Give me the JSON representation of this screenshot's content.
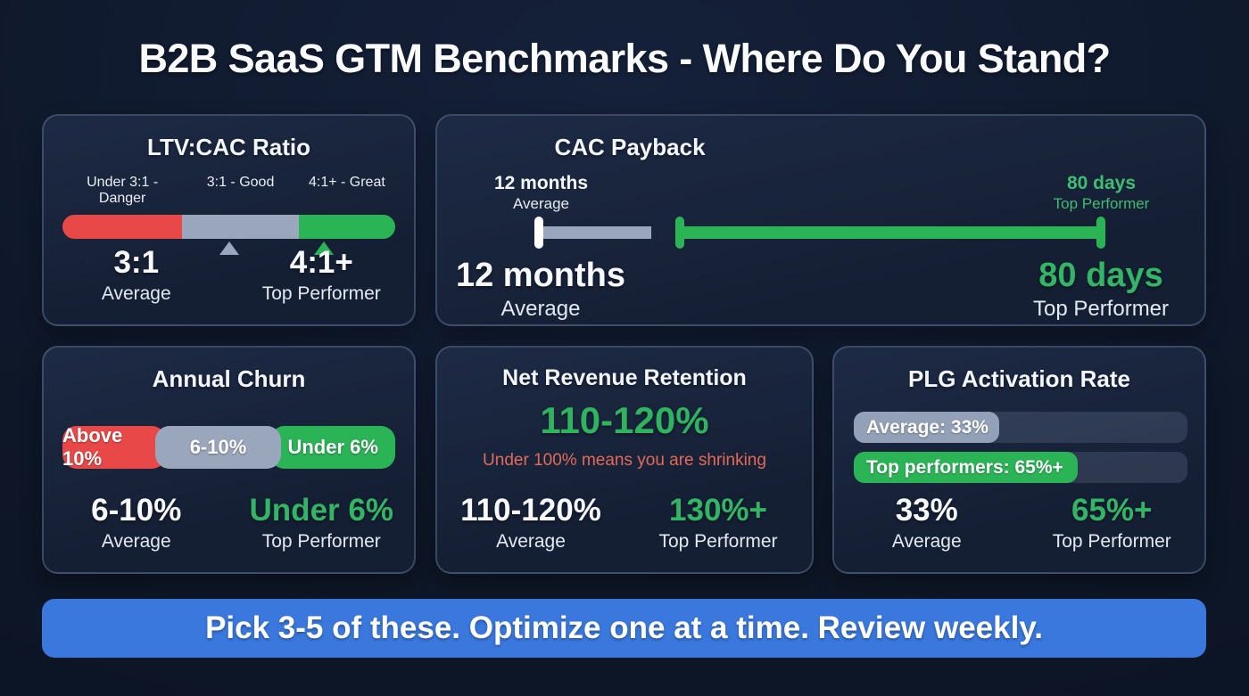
{
  "title": "B2B SaaS GTM Benchmarks - Where Do You Stand?",
  "banner": "Pick 3-5 of these. Optimize one at a time. Review weekly.",
  "colors": {
    "background": "#0e1728",
    "card_background": "#182440",
    "card_border": "#4a5c80",
    "danger_red": "#e94848",
    "neutral_slate": "#9aa6bb",
    "success_green": "#2bb456",
    "green_text": "#33b566",
    "warning_salmon": "#e26a5b",
    "banner_blue": "#3a78de",
    "text_white": "#f7f9fc"
  },
  "ltv_cac": {
    "title": "LTV:CAC Ratio",
    "zone_labels": [
      "Under 3:1 - Danger",
      "3:1 - Good",
      "4:1+ - Great"
    ],
    "avg_value": "3:1",
    "avg_label": "Average",
    "top_value": "4:1+",
    "top_label": "Top Performer"
  },
  "cac_payback": {
    "title": "CAC Payback",
    "marker_left_value": "12 months",
    "marker_left_label": "Average",
    "marker_right_value": "80 days",
    "marker_right_label": "Top Performer",
    "avg_value": "12 months",
    "avg_label": "Average",
    "top_value": "80 days",
    "top_label": "Top Performer"
  },
  "annual_churn": {
    "title": "Annual Churn",
    "segments": [
      "Above 10%",
      "6-10%",
      "Under 6%"
    ],
    "avg_value": "6-10%",
    "avg_label": "Average",
    "top_value": "Under 6%",
    "top_label": "Top Performer"
  },
  "nrr": {
    "title": "Net Revenue Retention",
    "highlight": "110-120%",
    "warning": "Under 100% means you are shrinking",
    "avg_value": "110-120%",
    "avg_label": "Average",
    "top_value": "130%+",
    "top_label": "Top Performer"
  },
  "plg": {
    "title": "PLG Activation Rate",
    "bar_average_label": "Average: 33%",
    "bar_top_label": "Top performers: 65%+",
    "avg_value": "33%",
    "avg_label": "Average",
    "top_value": "65%+",
    "top_label": "Top Performer"
  },
  "chart_data": [
    {
      "type": "bar",
      "title": "LTV:CAC Ratio",
      "categories": [
        "Under 3:1 - Danger",
        "3:1 - Good",
        "4:1+ - Great"
      ],
      "zone_colors": [
        "#e94848",
        "#9aa6bb",
        "#2bb456"
      ],
      "zone_widths_pct": [
        36,
        35,
        29
      ],
      "markers": [
        {
          "value": "3:1",
          "label": "Average",
          "position_pct": 50,
          "color": "#9aa6bb"
        },
        {
          "value": "4:1+",
          "label": "Top Performer",
          "position_pct": 78.6,
          "color": "#2bb456"
        }
      ],
      "average": "3:1",
      "top_performer": "4:1+"
    },
    {
      "type": "line",
      "title": "CAC Payback",
      "segments": [
        {
          "label": "12 months Average",
          "color": "#9aa6bb",
          "start_pct": 10,
          "end_pct": 26
        },
        {
          "label": "80 days Top Performer",
          "color": "#2bb456",
          "start_pct": 30,
          "end_pct": 88
        }
      ],
      "average": "12 months",
      "top_performer": "80 days"
    },
    {
      "type": "bar",
      "title": "Annual Churn",
      "categories": [
        "Above 10%",
        "6-10%",
        "Under 6%"
      ],
      "zone_colors": [
        "#e94848",
        "#9aa6bb",
        "#2bb456"
      ],
      "zone_widths_pct": [
        31,
        38,
        31
      ],
      "average": "6-10%",
      "top_performer": "Under 6%"
    },
    {
      "type": "table",
      "title": "Net Revenue Retention",
      "benchmark": "110-120%",
      "note": "Under 100% means you are shrinking",
      "average": "110-120%",
      "top_performer": "130%+"
    },
    {
      "type": "bar",
      "title": "PLG Activation Rate",
      "series": [
        {
          "name": "Average",
          "value": 33,
          "fill_pct": 43.5,
          "color": "#93a1b8"
        },
        {
          "name": "Top performers",
          "value": 65,
          "fill_pct": 67,
          "color": "#2bb456"
        }
      ],
      "average": "33%",
      "top_performer": "65%+"
    }
  ]
}
